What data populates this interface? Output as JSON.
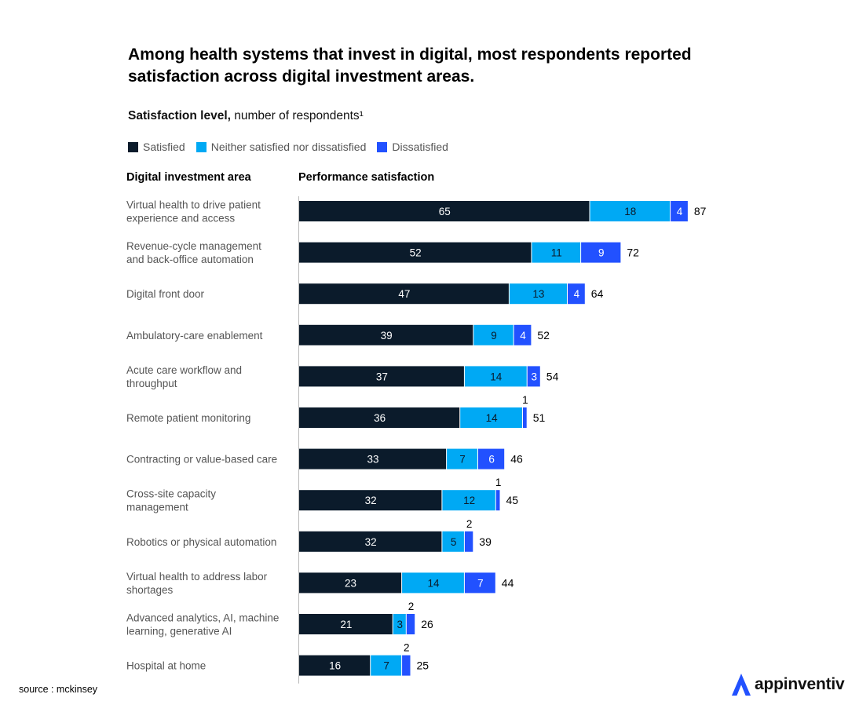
{
  "chart_data": {
    "type": "bar",
    "orientation": "horizontal",
    "stacked": true,
    "title": "Among health systems that invest in digital, most respondents reported satisfaction across digital investment areas.",
    "subtitle_bold": "Satisfaction level,",
    "subtitle_rest": " number of respondents¹",
    "category_header": "Digital investment area",
    "value_header": "Performance satisfaction",
    "categories": [
      [
        "Virtual health to drive patient",
        "experience and access"
      ],
      [
        "Revenue-cycle management",
        "and back-office automation"
      ],
      [
        "Digital front door"
      ],
      [
        "Ambulatory-care enablement"
      ],
      [
        "Acute care workflow and",
        "throughput"
      ],
      [
        "Remote patient monitoring"
      ],
      [
        "Contracting or value-based care"
      ],
      [
        "Cross-site capacity",
        "management"
      ],
      [
        "Robotics or physical automation"
      ],
      [
        "Virtual health to address labor",
        "shortages"
      ],
      [
        "Advanced analytics, AI, machine",
        "learning, generative AI"
      ],
      [
        "Hospital at home"
      ]
    ],
    "series": [
      {
        "name": "Satisfied",
        "color": "#0b1b2b",
        "label_color": "#ffffff",
        "values": [
          65,
          52,
          47,
          39,
          37,
          36,
          33,
          32,
          32,
          23,
          21,
          16
        ]
      },
      {
        "name": "Neither satisfied nor dissatisfied",
        "color": "#00a9f4",
        "label_color": "#0b1b2b",
        "values": [
          18,
          11,
          13,
          9,
          14,
          14,
          7,
          12,
          5,
          14,
          3,
          7
        ]
      },
      {
        "name": "Dissatisfied",
        "color": "#2251ff",
        "label_color": "#ffffff",
        "values": [
          4,
          9,
          4,
          4,
          3,
          1,
          6,
          1,
          2,
          7,
          2,
          2
        ]
      }
    ],
    "totals": [
      87,
      72,
      64,
      52,
      54,
      51,
      46,
      45,
      39,
      44,
      26,
      25
    ],
    "xlim": [
      0,
      90
    ]
  },
  "footer": {
    "source": "source : mckinsey",
    "brand": "appinventiv",
    "brand_icon": "appinventiv-logo-icon"
  },
  "colors": {
    "satisfied": "#0b1b2b",
    "neither": "#00a9f4",
    "dissatisfied": "#2251ff",
    "brand": "#2251ff"
  }
}
